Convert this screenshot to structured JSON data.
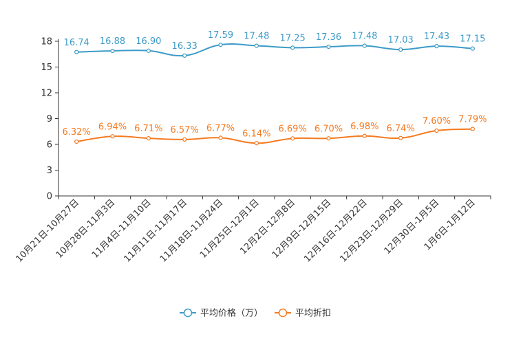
{
  "chart_data": {
    "type": "line",
    "categories": [
      "10月21日-10月27日",
      "10月28日-11月3日",
      "11月4日-11月10日",
      "11月11日-11月17日",
      "11月18日-11月24日",
      "11月25日-12月1日",
      "12月2日-12月8日",
      "12月9日-12月15日",
      "12月16日-12月22日",
      "12月23日-12月29日",
      "12月30日-1月5日",
      "1月6日-1月12日"
    ],
    "series": [
      {
        "name": "平均价格（万）",
        "color": "#3c9bc8",
        "values": [
          16.74,
          16.88,
          16.9,
          16.33,
          17.59,
          17.48,
          17.25,
          17.36,
          17.48,
          17.03,
          17.43,
          17.15
        ],
        "labels": [
          "16.74",
          "16.88",
          "16.90",
          "16.33",
          "17.59",
          "17.48",
          "17.25",
          "17.36",
          "17.48",
          "17.03",
          "17.43",
          "17.15"
        ]
      },
      {
        "name": "平均折扣",
        "color": "#f57a20",
        "values": [
          6.32,
          6.94,
          6.71,
          6.57,
          6.77,
          6.14,
          6.69,
          6.7,
          6.98,
          6.74,
          7.6,
          7.79
        ],
        "labels": [
          "6.32%",
          "6.94%",
          "6.71%",
          "6.57%",
          "6.77%",
          "6.14%",
          "6.69%",
          "6.70%",
          "6.98%",
          "6.74%",
          "7.60%",
          "7.79%"
        ]
      }
    ],
    "y_ticks": [
      "0",
      "3",
      "6",
      "9",
      "12",
      "15",
      "18"
    ],
    "ylim": [
      0,
      18
    ],
    "legend_position": "bottom-center",
    "grid": false
  }
}
